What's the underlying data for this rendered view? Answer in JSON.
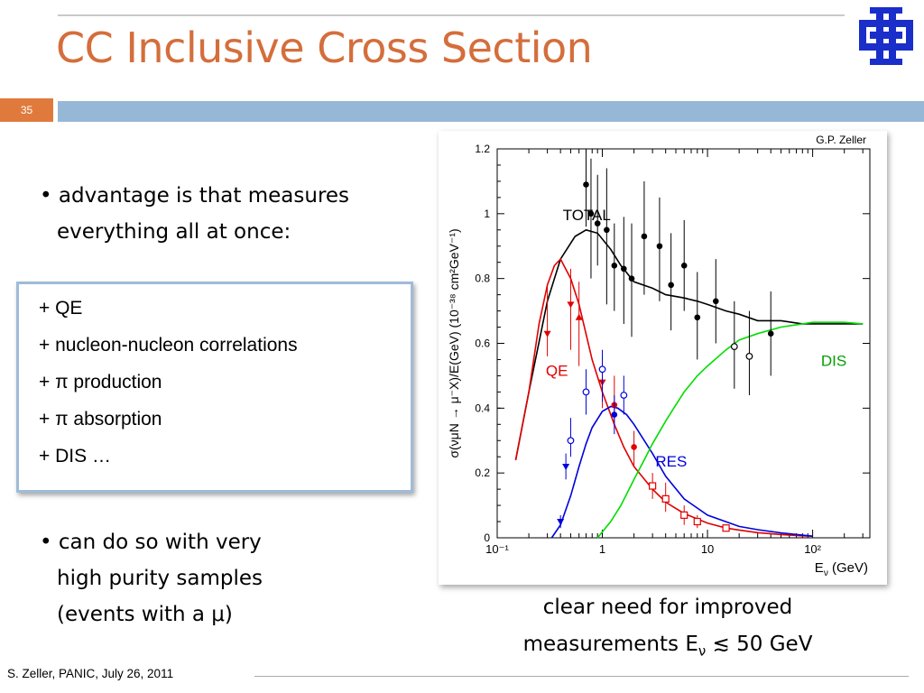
{
  "slide": {
    "title": "CC Inclusive Cross Section",
    "number": "35",
    "footer": "S. Zeller, PANIC, July 26, 2011"
  },
  "bullets": {
    "b1_line1": "• advantage is that measures",
    "b1_line2": "everything all at once:",
    "b2_line1": "• can do so with very",
    "b2_line2": "high purity samples",
    "b2_line3": "(events with a μ)"
  },
  "box_items": [
    "+ QE",
    "+ nucleon-nucleon correlations",
    "+ π production",
    "+ π absorption",
    "+ DIS …"
  ],
  "caption": {
    "line1": "clear need for improved",
    "line2": "measurements E",
    "sub": "ν",
    "line2_end": " ≲ 50 GeV"
  },
  "colors": {
    "title": "#d46e3c",
    "band": "#96b8d6",
    "slide_number_bg": "#e07a3c",
    "total": "#000000",
    "qe": "#e00000",
    "res": "#0000dd",
    "dis": "#00dd00",
    "logo": "#1a2ec9"
  },
  "logo_icon": "fermilab-logo-icon",
  "chart_data": {
    "type": "line",
    "credit": "G.P. Zeller",
    "xlabel": "E",
    "xlabel_sub": "ν",
    "xlabel_unit": " (GeV)",
    "ylabel": "σ(νμN → μ⁻X)/E(GeV)  (10⁻³⁸ cm²GeV⁻¹)",
    "xscale": "log",
    "xlim": [
      0.1,
      350
    ],
    "ylim": [
      0,
      1.2
    ],
    "xticks": [
      {
        "v": 0.1,
        "label": "10⁻¹"
      },
      {
        "v": 1,
        "label": "1"
      },
      {
        "v": 10,
        "label": "10"
      },
      {
        "v": 100,
        "label": "10²"
      }
    ],
    "yticks": [
      {
        "v": 0,
        "label": "0"
      },
      {
        "v": 0.2,
        "label": "0.2"
      },
      {
        "v": 0.4,
        "label": "0.4"
      },
      {
        "v": 0.6,
        "label": "0.6"
      },
      {
        "v": 0.8,
        "label": "0.8"
      },
      {
        "v": 1,
        "label": "1"
      },
      {
        "v": 1.2,
        "label": "1.2"
      }
    ],
    "series": [
      {
        "name": "TOTAL",
        "color": "#000000",
        "x": [
          0.15,
          0.2,
          0.3,
          0.4,
          0.55,
          0.7,
          0.9,
          1.2,
          1.5,
          2,
          3,
          4,
          6,
          8,
          10,
          15,
          20,
          30,
          50,
          80,
          100,
          150,
          200,
          300
        ],
        "y": [
          0.24,
          0.45,
          0.73,
          0.86,
          0.93,
          0.95,
          0.94,
          0.89,
          0.84,
          0.79,
          0.77,
          0.75,
          0.74,
          0.73,
          0.72,
          0.7,
          0.69,
          0.67,
          0.67,
          0.66,
          0.66,
          0.66,
          0.66,
          0.66
        ]
      },
      {
        "name": "QE",
        "color": "#e00000",
        "x": [
          0.15,
          0.2,
          0.25,
          0.3,
          0.35,
          0.4,
          0.5,
          0.6,
          0.8,
          1,
          1.3,
          1.6,
          2,
          3,
          4,
          6,
          10,
          15,
          20,
          30,
          50,
          80,
          100
        ],
        "y": [
          0.24,
          0.45,
          0.66,
          0.78,
          0.84,
          0.86,
          0.8,
          0.72,
          0.55,
          0.45,
          0.35,
          0.28,
          0.22,
          0.15,
          0.11,
          0.075,
          0.045,
          0.03,
          0.024,
          0.016,
          0.01,
          0.006,
          0.005
        ]
      },
      {
        "name": "RES",
        "color": "#0000dd",
        "x": [
          0.33,
          0.4,
          0.5,
          0.6,
          0.7,
          0.8,
          1,
          1.2,
          1.4,
          1.7,
          2,
          3,
          4,
          6,
          10,
          20,
          30,
          50,
          80,
          100
        ],
        "y": [
          0,
          0.04,
          0.13,
          0.22,
          0.29,
          0.34,
          0.39,
          0.405,
          0.4,
          0.38,
          0.35,
          0.26,
          0.19,
          0.12,
          0.07,
          0.035,
          0.025,
          0.015,
          0.008,
          0.005
        ]
      },
      {
        "name": "DIS",
        "color": "#00dd00",
        "x": [
          0.9,
          1.2,
          1.5,
          2,
          2.5,
          3,
          4,
          5,
          6,
          8,
          10,
          15,
          20,
          30,
          50,
          80,
          100,
          150,
          200,
          300
        ],
        "y": [
          0,
          0.05,
          0.1,
          0.18,
          0.24,
          0.29,
          0.36,
          0.41,
          0.45,
          0.5,
          0.53,
          0.58,
          0.61,
          0.63,
          0.65,
          0.66,
          0.665,
          0.665,
          0.665,
          0.66
        ]
      }
    ],
    "points": [
      {
        "x": 0.7,
        "y": 1.09,
        "lo": 0.96,
        "hi": 1.2,
        "c": "#000",
        "m": "dot"
      },
      {
        "x": 0.78,
        "y": 1.0,
        "lo": 0.8,
        "hi": 1.17,
        "c": "#000",
        "m": "dot"
      },
      {
        "x": 0.9,
        "y": 0.97,
        "lo": 0.84,
        "hi": 1.12,
        "c": "#000",
        "m": "dot"
      },
      {
        "x": 1.1,
        "y": 0.95,
        "lo": 0.72,
        "hi": 1.14,
        "c": "#000",
        "m": "dot"
      },
      {
        "x": 1.3,
        "y": 0.84,
        "lo": 0.7,
        "hi": 0.97,
        "c": "#000",
        "m": "dot"
      },
      {
        "x": 1.6,
        "y": 0.83,
        "lo": 0.66,
        "hi": 0.99,
        "c": "#000",
        "m": "dot"
      },
      {
        "x": 1.9,
        "y": 0.8,
        "lo": 0.62,
        "hi": 0.97,
        "c": "#000",
        "m": "dot"
      },
      {
        "x": 2.5,
        "y": 0.93,
        "lo": 0.75,
        "hi": 1.1,
        "c": "#000",
        "m": "dot"
      },
      {
        "x": 3.5,
        "y": 0.9,
        "lo": 0.73,
        "hi": 1.05,
        "c": "#000",
        "m": "dot"
      },
      {
        "x": 4.5,
        "y": 0.78,
        "lo": 0.64,
        "hi": 0.94,
        "c": "#000",
        "m": "dot"
      },
      {
        "x": 6,
        "y": 0.84,
        "lo": 0.7,
        "hi": 0.98,
        "c": "#000",
        "m": "dot"
      },
      {
        "x": 8,
        "y": 0.68,
        "lo": 0.55,
        "hi": 0.82,
        "c": "#000",
        "m": "dot"
      },
      {
        "x": 12,
        "y": 0.73,
        "lo": 0.6,
        "hi": 0.86,
        "c": "#000",
        "m": "dot"
      },
      {
        "x": 18,
        "y": 0.59,
        "lo": 0.46,
        "hi": 0.73,
        "c": "#000",
        "m": "open"
      },
      {
        "x": 25,
        "y": 0.56,
        "lo": 0.44,
        "hi": 0.7,
        "c": "#000",
        "m": "open"
      },
      {
        "x": 40,
        "y": 0.63,
        "lo": 0.5,
        "hi": 0.76,
        "c": "#000",
        "m": "dot"
      },
      {
        "x": 0.3,
        "y": 0.63,
        "lo": 0.56,
        "hi": 0.78,
        "c": "#e00000",
        "m": "tri"
      },
      {
        "x": 0.5,
        "y": 0.72,
        "lo": 0.58,
        "hi": 0.83,
        "c": "#e00000",
        "m": "tri"
      },
      {
        "x": 0.6,
        "y": 0.68,
        "lo": 0.53,
        "hi": 0.79,
        "c": "#e00000",
        "m": "triup"
      },
      {
        "x": 1,
        "y": 0.48,
        "lo": 0.4,
        "hi": 0.56,
        "c": "#e00000",
        "m": "tri"
      },
      {
        "x": 1.3,
        "y": 0.41,
        "lo": 0.35,
        "hi": 0.5,
        "c": "#e00000",
        "m": "dot"
      },
      {
        "x": 2,
        "y": 0.28,
        "lo": 0.22,
        "hi": 0.33,
        "c": "#e00000",
        "m": "dot"
      },
      {
        "x": 3,
        "y": 0.16,
        "lo": 0.12,
        "hi": 0.2,
        "c": "#e00000",
        "m": "sq"
      },
      {
        "x": 4,
        "y": 0.12,
        "lo": 0.08,
        "hi": 0.17,
        "c": "#e00000",
        "m": "sq"
      },
      {
        "x": 6,
        "y": 0.07,
        "lo": 0.04,
        "hi": 0.1,
        "c": "#e00000",
        "m": "sq"
      },
      {
        "x": 8,
        "y": 0.05,
        "lo": 0.03,
        "hi": 0.07,
        "c": "#e00000",
        "m": "sq"
      },
      {
        "x": 15,
        "y": 0.03,
        "lo": 0.02,
        "hi": 0.04,
        "c": "#e00000",
        "m": "sq"
      },
      {
        "x": 0.5,
        "y": 0.3,
        "lo": 0.25,
        "hi": 0.37,
        "c": "#0000dd",
        "m": "open"
      },
      {
        "x": 0.7,
        "y": 0.45,
        "lo": 0.38,
        "hi": 0.52,
        "c": "#0000dd",
        "m": "open"
      },
      {
        "x": 1,
        "y": 0.52,
        "lo": 0.42,
        "hi": 0.58,
        "c": "#0000dd",
        "m": "open"
      },
      {
        "x": 1.3,
        "y": 0.38,
        "lo": 0.32,
        "hi": 0.44,
        "c": "#0000dd",
        "m": "dot"
      },
      {
        "x": 1.6,
        "y": 0.44,
        "lo": 0.38,
        "hi": 0.5,
        "c": "#0000dd",
        "m": "open"
      },
      {
        "x": 0.4,
        "y": 0.05,
        "lo": 0.03,
        "hi": 0.07,
        "c": "#0000dd",
        "m": "tri"
      },
      {
        "x": 0.45,
        "y": 0.22,
        "lo": 0.18,
        "hi": 0.26,
        "c": "#0000dd",
        "m": "tri"
      }
    ],
    "annotations": [
      {
        "text": "TOTAL",
        "color": "#000000",
        "x": 0.42,
        "y": 0.98
      },
      {
        "text": "QE",
        "color": "#e00000",
        "x": 0.29,
        "y": 0.5
      },
      {
        "text": "DIS",
        "color": "#00a000",
        "x": 120,
        "y": 0.53
      },
      {
        "text": "RES",
        "color": "#0000dd",
        "x": 3.2,
        "y": 0.22
      }
    ]
  }
}
